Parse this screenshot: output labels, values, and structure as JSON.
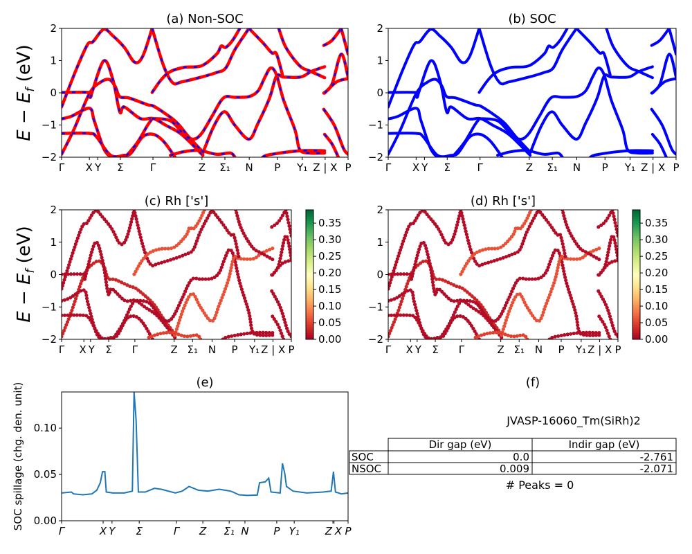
{
  "colors": {
    "nonsoc_line": "#ff0000",
    "nonsoc_dash": "#0000ff",
    "soc_line": "#0000ff",
    "spillage_line": "#1f77b4",
    "colormap": "RdYlGn"
  },
  "band_ylabel": {
    "main": "E − E",
    "sub": "f",
    "unit": " (eV)"
  },
  "chart_data": [
    {
      "panel": "a",
      "type": "line",
      "title": "(a) Non-SOC",
      "ylim": [
        -2,
        2
      ],
      "yticks": [
        "−2",
        "−1",
        "0",
        "1",
        "2"
      ],
      "yticks_values": [
        -2,
        -1,
        0,
        1,
        2
      ],
      "xticks": [
        {
          "k": 0,
          "label": "Γ"
        },
        {
          "k": 0.097,
          "label": "X"
        },
        {
          "k": 0.126,
          "label": "Y"
        },
        {
          "k": 0.205,
          "label": "Σ"
        },
        {
          "k": 0.319,
          "label": "Γ"
        },
        {
          "k": 0.49,
          "label": "Z"
        },
        {
          "k": 0.57,
          "label": "Σ₁"
        },
        {
          "k": 0.655,
          "label": "N"
        },
        {
          "k": 0.753,
          "label": "P"
        },
        {
          "k": 0.84,
          "label": "Y₁"
        },
        {
          "k": 0.92,
          "label": "Z | X"
        },
        {
          "k": 1,
          "label": "P"
        }
      ],
      "bands": [
        [
          [
            0,
            -0.44
          ],
          [
            0.05,
            0.7
          ],
          [
            0.09,
            1.49
          ],
          [
            0.11,
            1.59
          ],
          [
            0.147,
            1.97
          ],
          [
            0.179,
            1.77
          ],
          [
            0.219,
            1.41
          ],
          [
            0.255,
            0.95
          ],
          [
            0.283,
            1.13
          ],
          [
            0.316,
            2
          ]
        ],
        [
          [
            0.316,
            2
          ],
          [
            0.356,
            0.84
          ],
          [
            0.388,
            0.31
          ],
          [
            0.42,
            0.34
          ],
          [
            0.489,
            0.49
          ],
          [
            0.541,
            0.63
          ],
          [
            0.573,
            0.77
          ],
          [
            0.605,
            1.34
          ],
          [
            0.654,
            2
          ]
        ],
        [
          [
            0,
            -1.91
          ],
          [
            0.042,
            -1.16
          ],
          [
            0.098,
            -0.01
          ],
          [
            0.138,
            0.34
          ],
          [
            0.167,
            0.41
          ],
          [
            0.187,
            0.2
          ],
          [
            0.203,
            -0.12
          ],
          [
            0.235,
            -0.16
          ],
          [
            0.3,
            -0.37
          ],
          [
            0.32,
            -0.41
          ],
          [
            0.364,
            -0.66
          ],
          [
            0.404,
            -0.94
          ],
          [
            0.444,
            -1.37
          ],
          [
            0.489,
            -1.8
          ]
        ],
        [
          [
            0,
            -0.81
          ],
          [
            0.034,
            -0.73
          ],
          [
            0.097,
            -0.48
          ],
          [
            0.114,
            -0.87
          ],
          [
            0.147,
            -1.73
          ],
          [
            0.171,
            -2
          ]
        ],
        [
          [
            0,
            0.01
          ],
          [
            0.097,
            0.01
          ],
          [
            0.102,
            -0.09
          ],
          [
            0.147,
            0.99
          ],
          [
            0.179,
            0.41
          ],
          [
            0.203,
            -0.59
          ],
          [
            0.219,
            -0.44
          ],
          [
            0.275,
            -0.8
          ],
          [
            0.32,
            -0.8
          ],
          [
            0.364,
            -1.01
          ],
          [
            0.42,
            -1.3
          ],
          [
            0.493,
            -1.94
          ]
        ],
        [
          [
            0,
            -1.26
          ],
          [
            0.097,
            -1.26
          ],
          [
            0.122,
            -1.37
          ],
          [
            0.171,
            -1.94
          ],
          [
            0.219,
            -1.94
          ],
          [
            0.243,
            -1.87
          ],
          [
            0.283,
            -1.37
          ],
          [
            0.32,
            -1.29
          ],
          [
            0.356,
            -1.51
          ],
          [
            0.396,
            -2
          ]
        ],
        [
          [
            0.316,
            -0.81
          ],
          [
            0.3,
            -1.01
          ],
          [
            0.267,
            -1.51
          ],
          [
            0.235,
            -1.87
          ],
          [
            0.219,
            -2
          ]
        ],
        [
          [
            0.316,
            0.01
          ],
          [
            0.348,
            0.41
          ],
          [
            0.38,
            0.66
          ],
          [
            0.428,
            0.79
          ],
          [
            0.489,
            0.84
          ],
          [
            0.541,
            1.2
          ],
          [
            0.557,
            1.45
          ],
          [
            0.573,
            1.41
          ],
          [
            0.597,
            1.63
          ],
          [
            0.622,
            2
          ]
        ],
        [
          [
            0.316,
            -0.8
          ],
          [
            0.38,
            -0.87
          ],
          [
            0.428,
            -1.3
          ],
          [
            0.461,
            -1.44
          ],
          [
            0.489,
            -1.26
          ],
          [
            0.525,
            -0.73
          ],
          [
            0.565,
            -0.16
          ],
          [
            0.605,
            -0.14
          ],
          [
            0.654,
            -0.12
          ],
          [
            0.686,
            0.06
          ],
          [
            0.71,
            0.49
          ],
          [
            0.73,
            0.77
          ],
          [
            0.75,
            0.56
          ],
          [
            0.775,
            -0.23
          ],
          [
            0.815,
            -1.16
          ],
          [
            0.831,
            -1.76
          ],
          [
            0.863,
            -1.87
          ],
          [
            0.918,
            -1.87
          ]
        ],
        [
          [
            0.493,
            -1.87
          ],
          [
            0.533,
            -1.01
          ],
          [
            0.569,
            -0.59
          ],
          [
            0.605,
            -1.01
          ],
          [
            0.654,
            -1.44
          ],
          [
            0.686,
            -0.94
          ],
          [
            0.726,
            -0.16
          ],
          [
            0.75,
            0.52
          ],
          [
            0.775,
            0.49
          ],
          [
            0.835,
            0.49
          ],
          [
            0.871,
            0.66
          ],
          [
            0.918,
            0.81
          ]
        ],
        [
          [
            0.758,
            2
          ],
          [
            0.783,
            1.41
          ],
          [
            0.831,
            0.84
          ],
          [
            0.871,
            0.66
          ],
          [
            0.918,
            0.47
          ]
        ],
        [
          [
            0.654,
            2
          ],
          [
            0.702,
            1.56
          ],
          [
            0.734,
            1.24
          ],
          [
            0.75,
            1.21
          ],
          [
            0.771,
            0.56
          ]
        ],
        [
          [
            0.702,
            -2
          ],
          [
            0.726,
            -1.92
          ],
          [
            0.831,
            -1.8
          ],
          [
            0.918,
            -1.8
          ]
        ],
        [
          [
            0.38,
            -1.94
          ],
          [
            0.42,
            -1.84
          ],
          [
            0.461,
            -1.79
          ],
          [
            0.489,
            -1.8
          ],
          [
            0.541,
            -1.91
          ],
          [
            0.589,
            -1.87
          ],
          [
            0.605,
            -2
          ]
        ],
        [
          [
            0.915,
            1.47
          ],
          [
            0.944,
            1.63
          ],
          [
            0.976,
            2
          ]
        ],
        [
          [
            0.976,
            2
          ],
          [
            1,
            1.2
          ]
        ],
        [
          [
            0.915,
            -0.01
          ],
          [
            0.944,
            0.27
          ],
          [
            0.976,
            1.2
          ],
          [
            1,
            0.49
          ]
        ],
        [
          [
            0.918,
            -0.01
          ],
          [
            0.96,
            0.34
          ],
          [
            1,
            0.44
          ]
        ],
        [
          [
            0.915,
            -0.51
          ],
          [
            0.952,
            -1.01
          ],
          [
            0.984,
            -1.73
          ],
          [
            1,
            -1.91
          ]
        ],
        [
          [
            0.918,
            -1.29
          ],
          [
            0.944,
            -1.59
          ],
          [
            0.966,
            -2
          ]
        ]
      ]
    },
    {
      "panel": "b",
      "type": "line",
      "title": "(b) SOC",
      "ylim": [
        -2,
        2
      ],
      "bands": "same as (a)"
    },
    {
      "panel": "c",
      "type": "scatter",
      "title": "(c)  Rh ['s']",
      "ylim": [
        -2,
        2
      ],
      "band_weights": [
        0.01,
        0.01,
        0.03,
        0.01,
        0.01,
        0.01,
        0.01,
        0.06,
        0.01,
        0.06,
        0.01,
        0.01,
        0.01,
        0.05,
        0.01,
        0.01,
        0.01,
        0.01,
        0.01,
        0.01
      ],
      "colorbar": {
        "range": [
          0,
          0.39
        ],
        "ticks": [
          "0.00",
          "0.05",
          "0.10",
          "0.15",
          "0.20",
          "0.25",
          "0.30",
          "0.35"
        ],
        "tick_values": [
          0,
          0.05,
          0.1,
          0.15,
          0.2,
          0.25,
          0.3,
          0.35
        ]
      }
    },
    {
      "panel": "d",
      "type": "scatter",
      "title": "(d) Rh ['s']",
      "ylim": [
        -2,
        2
      ]
    },
    {
      "panel": "e",
      "type": "line",
      "title": "(e)",
      "ylabel": "SOC spillage (chg. den. unit)",
      "ylim": [
        0,
        0.139
      ],
      "yticks": [
        "0.00",
        "0.05",
        "0.10"
      ],
      "yticks_values": [
        0,
        0.05,
        0.1
      ],
      "xticks": [
        {
          "k": 0,
          "label": "Γ"
        },
        {
          "k": 0.145,
          "label": "X"
        },
        {
          "k": 0.176,
          "label": "Y"
        },
        {
          "k": 0.271,
          "label": "Σ"
        },
        {
          "k": 0.401,
          "label": "Γ"
        },
        {
          "k": 0.493,
          "label": "Z"
        },
        {
          "k": 0.585,
          "label": "Σ₁"
        },
        {
          "k": 0.64,
          "label": "N"
        },
        {
          "k": 0.751,
          "label": "P"
        },
        {
          "k": 0.812,
          "label": "Y₁"
        },
        {
          "k": 0.947,
          "label": "Z"
        },
        {
          "k": 0.951,
          "label": "X"
        },
        {
          "k": 1,
          "label": "P"
        }
      ],
      "points": [
        [
          0,
          0.03
        ],
        [
          0.034,
          0.031
        ],
        [
          0.042,
          0.029
        ],
        [
          0.074,
          0.028
        ],
        [
          0.106,
          0.029
        ],
        [
          0.123,
          0.033
        ],
        [
          0.135,
          0.041
        ],
        [
          0.143,
          0.053
        ],
        [
          0.151,
          0.053
        ],
        [
          0.156,
          0.031
        ],
        [
          0.179,
          0.03
        ],
        [
          0.219,
          0.03
        ],
        [
          0.247,
          0.032
        ],
        [
          0.253,
          0.139
        ],
        [
          0.26,
          0.109
        ],
        [
          0.268,
          0.031
        ],
        [
          0.292,
          0.031
        ],
        [
          0.324,
          0.035
        ],
        [
          0.348,
          0.034
        ],
        [
          0.397,
          0.03
        ],
        [
          0.421,
          0.032
        ],
        [
          0.445,
          0.037
        ],
        [
          0.477,
          0.033
        ],
        [
          0.51,
          0.032
        ],
        [
          0.55,
          0.034
        ],
        [
          0.59,
          0.032
        ],
        [
          0.598,
          0.031
        ],
        [
          0.619,
          0.028
        ],
        [
          0.647,
          0.0274
        ],
        [
          0.683,
          0.0277
        ],
        [
          0.691,
          0.041
        ],
        [
          0.711,
          0.042
        ],
        [
          0.723,
          0.046
        ],
        [
          0.731,
          0.031
        ],
        [
          0.763,
          0.03
        ],
        [
          0.771,
          0.062
        ],
        [
          0.779,
          0.051
        ],
        [
          0.785,
          0.037
        ],
        [
          0.808,
          0.032
        ],
        [
          0.856,
          0.03
        ],
        [
          0.913,
          0.031
        ],
        [
          0.941,
          0.032
        ],
        [
          0.949,
          0.053
        ],
        [
          0.956,
          0.031
        ],
        [
          0.977,
          0.029
        ],
        [
          1,
          0.03
        ]
      ]
    }
  ],
  "info_panel": {
    "title": "(f)",
    "material": "JVASP-16060_Tm(SiRh)2",
    "table": {
      "headers": [
        "",
        "Dir gap (eV)",
        "Indir gap (eV)"
      ],
      "rows": [
        [
          "SOC",
          "0.0",
          "-2.761"
        ],
        [
          "NSOC",
          "0.009",
          "-2.071"
        ]
      ]
    },
    "peaks": "# Peaks = 0"
  }
}
